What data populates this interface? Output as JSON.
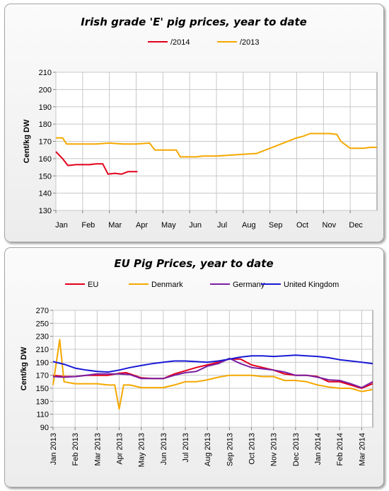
{
  "chart_data": [
    {
      "type": "line",
      "title": "Irish grade 'E' pig prices, year to date",
      "ylabel": "Cent/kg DW",
      "xlabel": "",
      "ylim": [
        130,
        210
      ],
      "yticks": [
        "130",
        "140",
        "150",
        "160",
        "170",
        "180",
        "190",
        "200",
        "210"
      ],
      "xlim": [
        0,
        12
      ],
      "xticks": [
        "Jan",
        "Feb",
        "Mar",
        "Apr",
        "May",
        "Jun",
        "Jul",
        "Aug",
        "Sep",
        "Oct",
        "Nov",
        "Dec"
      ],
      "grid": true,
      "legend": "top",
      "series": [
        {
          "name": "/2014",
          "color": "#e3001b",
          "x": [
            0,
            0.25,
            0.45,
            0.75,
            1.0,
            1.25,
            1.5,
            1.75,
            1.95,
            2.2,
            2.45,
            2.7,
            2.95,
            3.05
          ],
          "y": [
            164,
            160,
            156,
            156.5,
            156.5,
            156.5,
            157,
            157,
            151,
            151.5,
            151,
            152.5,
            152.5,
            152.5
          ]
        },
        {
          "name": "/2013",
          "color": "#f5a800",
          "x": [
            0,
            0.25,
            0.4,
            1.0,
            1.5,
            2.0,
            2.5,
            2.75,
            3.0,
            3.5,
            3.7,
            4.0,
            4.25,
            4.5,
            4.65,
            4.85,
            5.0,
            5.25,
            5.5,
            6.0,
            6.5,
            7.0,
            7.5,
            8.0,
            8.5,
            9.0,
            9.25,
            9.5,
            10.0,
            10.25,
            10.5,
            10.65,
            11.0,
            11.5,
            11.75,
            12.0
          ],
          "y": [
            172,
            172,
            168.5,
            168.5,
            168.5,
            169,
            168.5,
            168.5,
            168.5,
            169,
            165,
            165,
            165,
            165,
            161,
            161,
            161,
            161,
            161.5,
            161.5,
            162,
            162.5,
            163,
            166,
            169,
            172,
            173,
            174.5,
            174.5,
            174.5,
            174,
            170,
            166,
            166,
            166.5,
            166.5
          ]
        }
      ]
    },
    {
      "type": "line",
      "title": "EU Pig Prices, year to date",
      "ylabel": "Cent/kg DW",
      "xlabel": "",
      "ylim": [
        90,
        270
      ],
      "yticks": [
        "90",
        "110",
        "130",
        "150",
        "170",
        "190",
        "210",
        "230",
        "250",
        "270"
      ],
      "xlim": [
        0,
        14.5
      ],
      "xticks": [
        "Jan 2013",
        "Feb 2013",
        "Mar 2013",
        "Apr 2013",
        "May 2013",
        "Jun 2013",
        "Jul 2013",
        "Aug 2013",
        "Sep 2013",
        "Oct 2013",
        "Nov 2013",
        "Dec 2013",
        "Jan 2014",
        "Feb 2014",
        "Mar 2014"
      ],
      "grid": true,
      "legend": "top",
      "series": [
        {
          "name": "EU",
          "color": "#e3001b",
          "x": [
            0,
            0.5,
            1,
            1.5,
            2,
            2.5,
            3,
            3.3,
            3.5,
            4,
            4.5,
            5,
            5.5,
            6,
            6.5,
            7,
            7.5,
            8,
            8.5,
            9,
            9.5,
            10,
            10.5,
            11,
            11.5,
            12,
            12.5,
            13,
            13.5,
            14,
            14.5
          ],
          "y": [
            170,
            168,
            168,
            170,
            170,
            170,
            173,
            174,
            172,
            166,
            165,
            165,
            172,
            177,
            182,
            186,
            190,
            195,
            195,
            186,
            182,
            178,
            172,
            170,
            170,
            168,
            160,
            160,
            155,
            150,
            157
          ]
        },
        {
          "name": "Denmark",
          "color": "#f5a800",
          "x": [
            0,
            0.15,
            0.3,
            0.5,
            1,
            1.5,
            2,
            2.5,
            2.8,
            3,
            3.2,
            3.5,
            4,
            4.5,
            5,
            5.5,
            6,
            6.5,
            7,
            7.5,
            8,
            8.5,
            9,
            9.5,
            10,
            10.5,
            11,
            11.5,
            12,
            12.5,
            13,
            13.5,
            14,
            14.5
          ],
          "y": [
            155,
            190,
            225,
            160,
            157,
            157,
            157,
            155,
            155,
            118,
            155,
            155,
            151,
            151,
            151,
            155,
            160,
            160,
            163,
            167,
            170,
            170,
            170,
            168,
            168,
            162,
            162,
            160,
            155,
            152,
            150,
            150,
            145,
            148
          ]
        },
        {
          "name": "Germany",
          "color": "#7b1fa2",
          "x": [
            0,
            0.5,
            1,
            1.5,
            2,
            2.5,
            3,
            3.5,
            4,
            4.5,
            5,
            5.5,
            6,
            6.5,
            7,
            7.5,
            8,
            8.5,
            9,
            9.5,
            10,
            10.5,
            11,
            11.5,
            12,
            12.5,
            13,
            13.5,
            14,
            14.5
          ],
          "y": [
            168,
            167,
            168,
            170,
            172,
            172,
            172,
            171,
            165,
            165,
            165,
            170,
            174,
            176,
            184,
            188,
            196,
            188,
            182,
            180,
            178,
            175,
            170,
            170,
            167,
            163,
            162,
            157,
            151,
            160
          ]
        },
        {
          "name": "United Kingdom",
          "color": "#1a1ad6",
          "x": [
            0,
            0.5,
            1,
            1.5,
            2,
            2.5,
            3,
            3.5,
            4,
            4.5,
            5,
            5.5,
            6,
            6.5,
            7,
            7.5,
            8,
            8.5,
            9,
            9.5,
            10,
            10.5,
            11,
            11.5,
            12,
            12.5,
            13,
            13.5,
            14,
            14.5
          ],
          "y": [
            191,
            187,
            181,
            178,
            176,
            175,
            178,
            182,
            185,
            188,
            190,
            192,
            192,
            191,
            190,
            192,
            195,
            198,
            200,
            200,
            199,
            200,
            201,
            200,
            199,
            197,
            194,
            192,
            190,
            188
          ]
        }
      ]
    }
  ]
}
